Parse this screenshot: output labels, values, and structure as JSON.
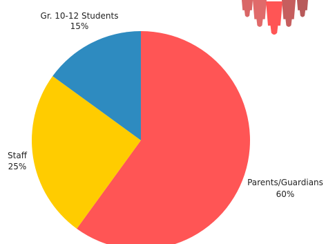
{
  "chart_data": {
    "type": "pie",
    "title": "",
    "slices": [
      {
        "label": "Parents/Guardians",
        "value": 60,
        "percent_label": "60%",
        "color": "#FF5555"
      },
      {
        "label": "Staff",
        "value": 25,
        "percent_label": "25%",
        "color": "#FFCC00"
      },
      {
        "label": "Gr. 10-12 Students",
        "value": 15,
        "percent_label": "15%",
        "color": "#2E8BC0"
      }
    ],
    "start_angle": "12 o'clock",
    "direction": "clockwise",
    "legend": "none",
    "data_labels": "outside"
  },
  "decoration": {
    "icon": "people-group-icon",
    "colors": [
      "#D96666",
      "#E06A6A",
      "#FF5555",
      "#C65E5E",
      "#B85A5A"
    ]
  }
}
